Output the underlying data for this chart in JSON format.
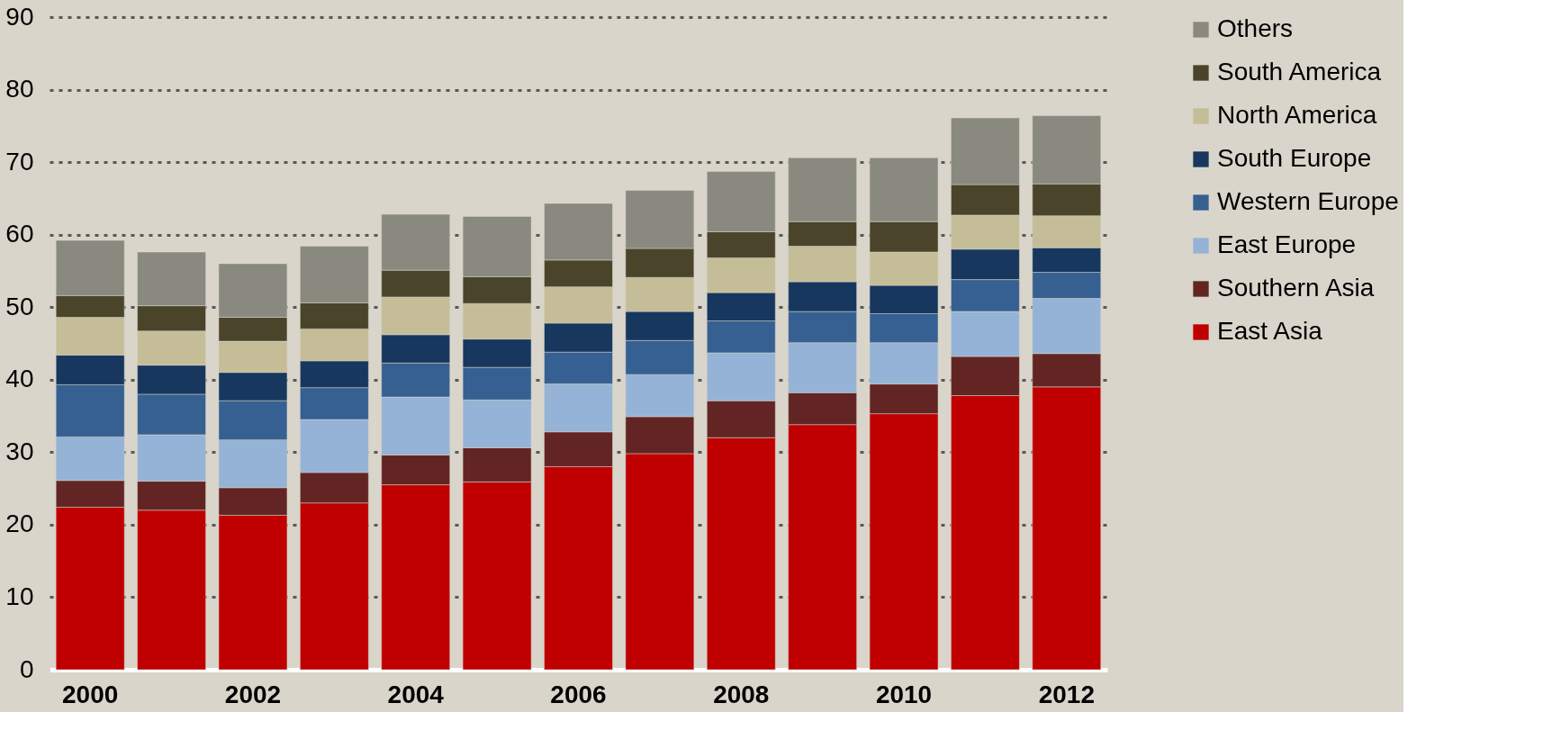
{
  "chart_data": {
    "type": "bar",
    "stacked": true,
    "categories": [
      "2000",
      null,
      "2002",
      null,
      "2004",
      null,
      "2006",
      null,
      "2008",
      null,
      "2010",
      null,
      "2012"
    ],
    "series": [
      {
        "name": "East Asia",
        "color": "#c00000",
        "values": [
          22.4,
          22.0,
          21.3,
          23.0,
          25.5,
          25.9,
          28.0,
          29.8,
          32.0,
          33.8,
          35.3,
          37.8,
          39.0
        ]
      },
      {
        "name": "Southern Asia",
        "color": "#632523",
        "values": [
          3.7,
          4.0,
          3.8,
          4.2,
          4.1,
          4.7,
          4.8,
          5.1,
          5.1,
          4.4,
          4.1,
          5.4,
          4.6
        ]
      },
      {
        "name": "East Europe",
        "color": "#95b3d7",
        "values": [
          6.0,
          6.4,
          6.6,
          7.3,
          8.0,
          6.6,
          6.6,
          5.8,
          6.6,
          6.9,
          5.7,
          6.2,
          7.6
        ]
      },
      {
        "name": "Western Europe",
        "color": "#366092",
        "values": [
          7.2,
          5.6,
          5.4,
          4.4,
          4.7,
          4.5,
          4.4,
          4.7,
          4.4,
          4.3,
          4.0,
          4.4,
          3.6
        ]
      },
      {
        "name": "South Europe",
        "color": "#17375e",
        "values": [
          4.1,
          4.0,
          3.9,
          3.7,
          3.9,
          3.9,
          4.0,
          4.0,
          3.9,
          4.1,
          3.9,
          4.2,
          3.4
        ]
      },
      {
        "name": "North America",
        "color": "#c4bd97",
        "values": [
          5.2,
          4.7,
          4.3,
          4.4,
          5.2,
          4.9,
          5.0,
          4.7,
          4.8,
          4.9,
          4.6,
          4.7,
          4.4
        ]
      },
      {
        "name": "South America",
        "color": "#4a452a",
        "values": [
          3.0,
          3.5,
          3.3,
          3.6,
          3.7,
          3.7,
          3.7,
          4.0,
          3.6,
          3.4,
          4.2,
          4.2,
          4.4
        ]
      },
      {
        "name": "Others",
        "color": "#898980",
        "values": [
          7.6,
          7.4,
          7.4,
          7.8,
          7.7,
          8.3,
          7.8,
          8.0,
          8.3,
          8.8,
          8.8,
          9.2,
          9.4
        ]
      }
    ],
    "ylim": [
      0,
      90
    ],
    "yticks": [
      0,
      10,
      20,
      30,
      40,
      50,
      60,
      70,
      80,
      90
    ],
    "grid": "y",
    "legend": "right"
  }
}
